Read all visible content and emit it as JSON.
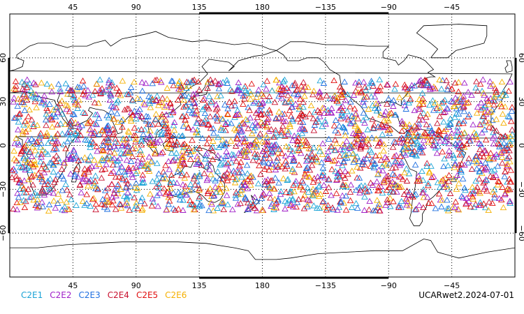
{
  "top_axis_labels": [
    "45",
    "90",
    "135",
    "180",
    "−135",
    "−90",
    "−45"
  ],
  "bottom_axis_labels": [
    "45",
    "90",
    "135",
    "180",
    "−135",
    "−90",
    "−45"
  ],
  "left_axis_labels": [
    "60",
    "30",
    "0",
    "−30",
    "−60"
  ],
  "right_axis_labels": [
    "60",
    "30",
    "0",
    "−30",
    "−60"
  ],
  "legend": [
    {
      "label": "C2E1",
      "color": "#1aa3d6"
    },
    {
      "label": "C2E2",
      "color": "#a020c8"
    },
    {
      "label": "C2E3",
      "color": "#1f6fe0"
    },
    {
      "label": "C2E4",
      "color": "#c8102e"
    },
    {
      "label": "C2E5",
      "color": "#e01010"
    },
    {
      "label": "C2E6",
      "color": "#f5b000"
    }
  ],
  "product_label": "UCARwet2.2024-07-01",
  "projection": "cylindrical equidistant, longitude 0 to 360 (center 180)",
  "observation_latitude_band": "approximately 45S to 45N",
  "marker_symbol": "open-triangle"
}
